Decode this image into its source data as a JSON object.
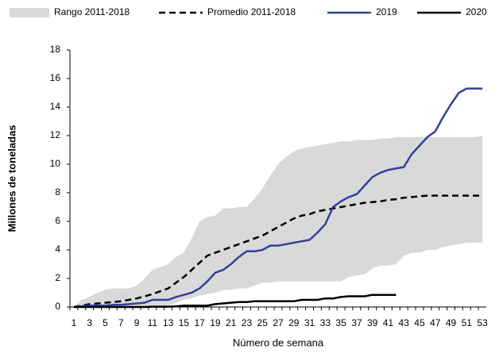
{
  "chart_data": {
    "type": "line",
    "x_label": "Número de semana",
    "y_label": "Millones de toneladas",
    "categories": [
      "1",
      null,
      "3",
      null,
      "5",
      null,
      "7",
      null,
      "9",
      null,
      "11",
      null,
      "13",
      null,
      "15",
      null,
      "17",
      null,
      "19",
      null,
      "21",
      null,
      "23",
      null,
      "25",
      null,
      "27",
      null,
      "29",
      null,
      "31",
      null,
      "33",
      null,
      "35",
      null,
      "37",
      null,
      "39",
      null,
      "41",
      null,
      "43",
      null,
      "45",
      null,
      "47",
      null,
      "49",
      null,
      "51",
      null,
      "53"
    ],
    "ylim": [
      0,
      18
    ],
    "yticks": [
      0,
      2,
      4,
      6,
      8,
      10,
      12,
      14,
      16,
      18
    ],
    "legend": "top",
    "series": [
      {
        "name": "Rango 2011-2018",
        "color": "#d9d9d9",
        "kind": "band",
        "high": [
          0,
          0.5,
          0.7,
          1.0,
          1.2,
          1.3,
          1.3,
          1.3,
          1.5,
          2.0,
          2.6,
          2.8,
          3.0,
          3.5,
          3.8,
          4.8,
          6.0,
          6.3,
          6.4,
          6.9,
          6.9,
          7.0,
          7.0,
          7.6,
          8.3,
          9.2,
          10.0,
          10.5,
          10.9,
          11.1,
          11.2,
          11.3,
          11.4,
          11.5,
          11.6,
          11.6,
          11.7,
          11.7,
          11.7,
          11.8,
          11.8,
          11.9,
          11.9,
          11.9,
          11.9,
          11.9,
          11.9,
          11.9,
          11.9,
          11.9,
          11.9,
          11.9,
          12.0
        ],
        "low": [
          0,
          0,
          0,
          0,
          0,
          0,
          0,
          0,
          0,
          0,
          0,
          0,
          0.1,
          0.3,
          0.5,
          0.6,
          0.8,
          0.9,
          1.0,
          1.2,
          1.2,
          1.3,
          1.3,
          1.5,
          1.7,
          1.7,
          1.8,
          1.8,
          1.8,
          1.8,
          1.8,
          1.8,
          1.8,
          1.8,
          1.8,
          2.1,
          2.2,
          2.3,
          2.7,
          2.9,
          2.9,
          3.0,
          3.6,
          3.8,
          3.8,
          4.0,
          4.0,
          4.2,
          4.3,
          4.4,
          4.5,
          4.5,
          4.5
        ]
      },
      {
        "name": "Promedio 2011-2018",
        "color": "#000000",
        "dash": true,
        "values": [
          0,
          0.1,
          0.2,
          0.25,
          0.3,
          0.35,
          0.4,
          0.5,
          0.6,
          0.75,
          0.9,
          1.1,
          1.3,
          1.7,
          2.1,
          2.6,
          3.1,
          3.6,
          3.8,
          4.0,
          4.2,
          4.4,
          4.6,
          4.8,
          5.0,
          5.3,
          5.6,
          5.9,
          6.2,
          6.4,
          6.5,
          6.7,
          6.8,
          6.9,
          7.0,
          7.1,
          7.2,
          7.3,
          7.35,
          7.4,
          7.5,
          7.55,
          7.65,
          7.7,
          7.75,
          7.8,
          7.8,
          7.8,
          7.8,
          7.8,
          7.8,
          7.8,
          7.8
        ]
      },
      {
        "name": "2019",
        "color": "#33409a",
        "dash": false,
        "values": [
          0,
          0.05,
          0.1,
          0.1,
          0.1,
          0.15,
          0.15,
          0.2,
          0.25,
          0.3,
          0.5,
          0.5,
          0.5,
          0.7,
          0.85,
          1.0,
          1.3,
          1.8,
          2.4,
          2.6,
          3.0,
          3.5,
          3.9,
          3.9,
          4.0,
          4.3,
          4.3,
          4.4,
          4.5,
          4.6,
          4.7,
          5.2,
          5.8,
          7.0,
          7.4,
          7.7,
          7.9,
          8.5,
          9.1,
          9.4,
          9.6,
          9.7,
          9.8,
          10.7,
          11.3,
          11.9,
          12.3,
          13.3,
          14.2,
          15.0,
          15.3,
          15.3,
          15.3
        ]
      },
      {
        "name": "2020",
        "color": "#000000",
        "dash": false,
        "values": [
          0,
          0,
          0,
          0,
          0,
          0,
          0,
          0,
          0,
          0,
          0.02,
          0.02,
          0.02,
          0.05,
          0.1,
          0.1,
          0.1,
          0.1,
          0.2,
          0.25,
          0.3,
          0.35,
          0.35,
          0.4,
          0.4,
          0.4,
          0.4,
          0.4,
          0.4,
          0.5,
          0.5,
          0.5,
          0.6,
          0.6,
          0.7,
          0.75,
          0.75,
          0.75,
          0.85,
          0.85,
          0.85,
          0.85,
          null,
          null,
          null,
          null,
          null,
          null,
          null,
          null,
          null,
          null,
          null
        ]
      }
    ]
  }
}
